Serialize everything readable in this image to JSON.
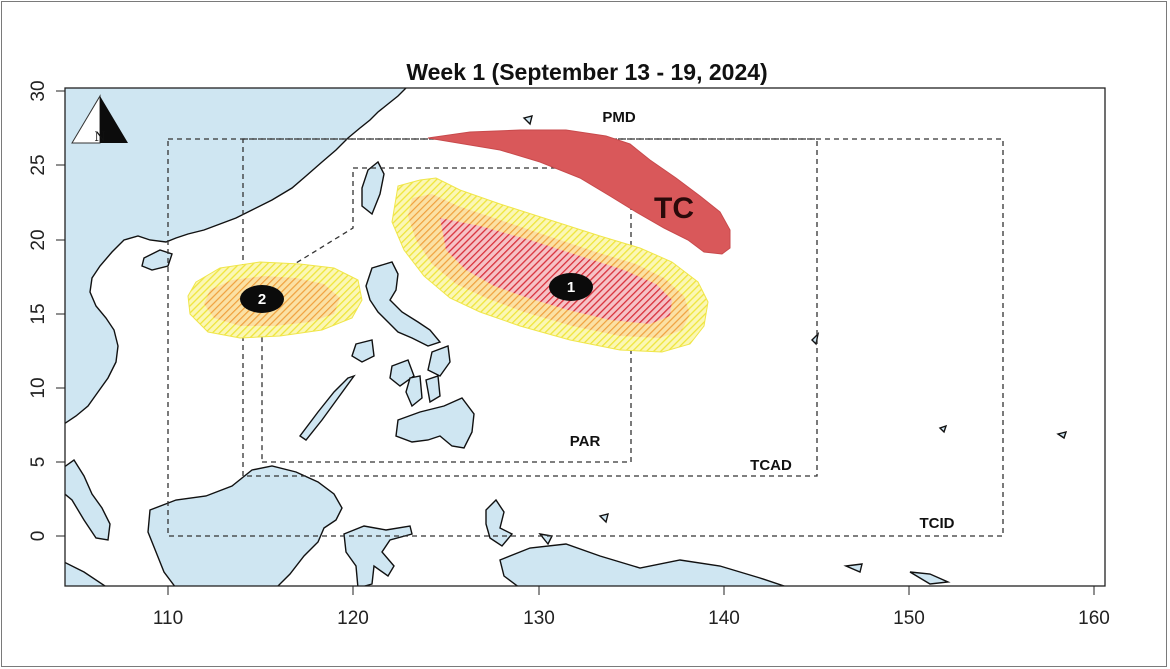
{
  "map": {
    "title": "Week 1 (September 13 - 19, 2024)",
    "x_ticks": [
      "110",
      "120",
      "130",
      "140",
      "150",
      "160"
    ],
    "y_ticks": [
      "30",
      "25",
      "20",
      "15",
      "10",
      "5",
      "0"
    ],
    "x_range_deg": [
      104.5,
      160.5
    ],
    "y_range_deg": [
      -3.2,
      30.2
    ],
    "north_arrow_label": "N",
    "boundaries": [
      {
        "id": "pmd",
        "label": "PMD"
      },
      {
        "id": "par",
        "label": "PAR"
      },
      {
        "id": "tcad",
        "label": "TCAD"
      },
      {
        "id": "tcid",
        "label": "TCID"
      }
    ],
    "tc_area_label": "TC",
    "threat_areas": [
      {
        "id": "1",
        "label": "1"
      },
      {
        "id": "2",
        "label": "2"
      }
    ],
    "colors": {
      "land": "#cfe6f2",
      "tc_area": "#d9585a",
      "high_threat": "#d9303a",
      "moderate_threat": "#f2a23a",
      "low_threat": "#f5ef5a"
    }
  }
}
